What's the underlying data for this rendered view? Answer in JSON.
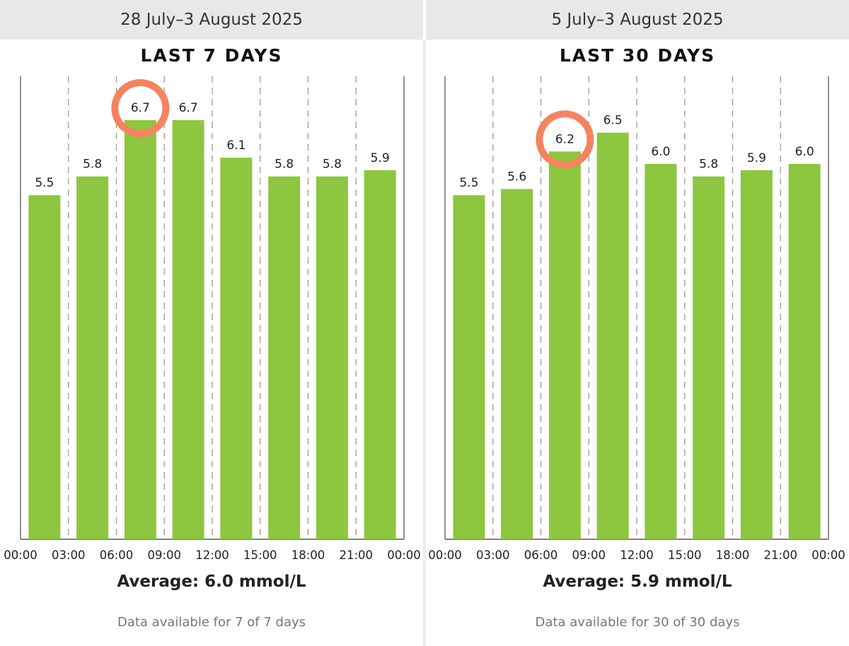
{
  "colors": {
    "bar": "#8dc63f",
    "highlight_ring": "#f4845f",
    "header_bg": "#e8e8e8",
    "gridline": "#9a9a9a"
  },
  "panels": [
    {
      "header": "28 July–3 August 2025",
      "average_text": "Average: 6.0 mmol/L",
      "availability_text": "Data available for 7 of 7 days"
    },
    {
      "header": "5 July–3 August 2025",
      "average_text": "Average: 5.9 mmol/L",
      "availability_text": "Data available for 30 of 30 days"
    }
  ],
  "chart_data": [
    {
      "type": "bar",
      "title": "LAST 7 DAYS",
      "x_tick_labels": [
        "00:00",
        "03:00",
        "06:00",
        "09:00",
        "12:00",
        "15:00",
        "18:00",
        "21:00",
        "00:00"
      ],
      "values": [
        5.5,
        5.8,
        6.7,
        6.7,
        6.1,
        5.8,
        5.8,
        5.9
      ],
      "value_labels": [
        "5.5",
        "5.8",
        "6.7",
        "6.7",
        "6.1",
        "5.8",
        "5.8",
        "5.9"
      ],
      "highlighted_index": 2,
      "ylim": [
        0,
        7.5
      ],
      "grid": "vertical-dashed"
    },
    {
      "type": "bar",
      "title": "LAST 30 DAYS",
      "x_tick_labels": [
        "00:00",
        "03:00",
        "06:00",
        "09:00",
        "12:00",
        "15:00",
        "18:00",
        "21:00",
        "00:00"
      ],
      "values": [
        5.5,
        5.6,
        6.2,
        6.5,
        6.0,
        5.8,
        5.9,
        6.0
      ],
      "value_labels": [
        "5.5",
        "5.6",
        "6.2",
        "6.5",
        "6.0",
        "5.8",
        "5.9",
        "6.0"
      ],
      "highlighted_index": 2,
      "ylim": [
        0,
        7.5
      ],
      "grid": "vertical-dashed"
    }
  ]
}
